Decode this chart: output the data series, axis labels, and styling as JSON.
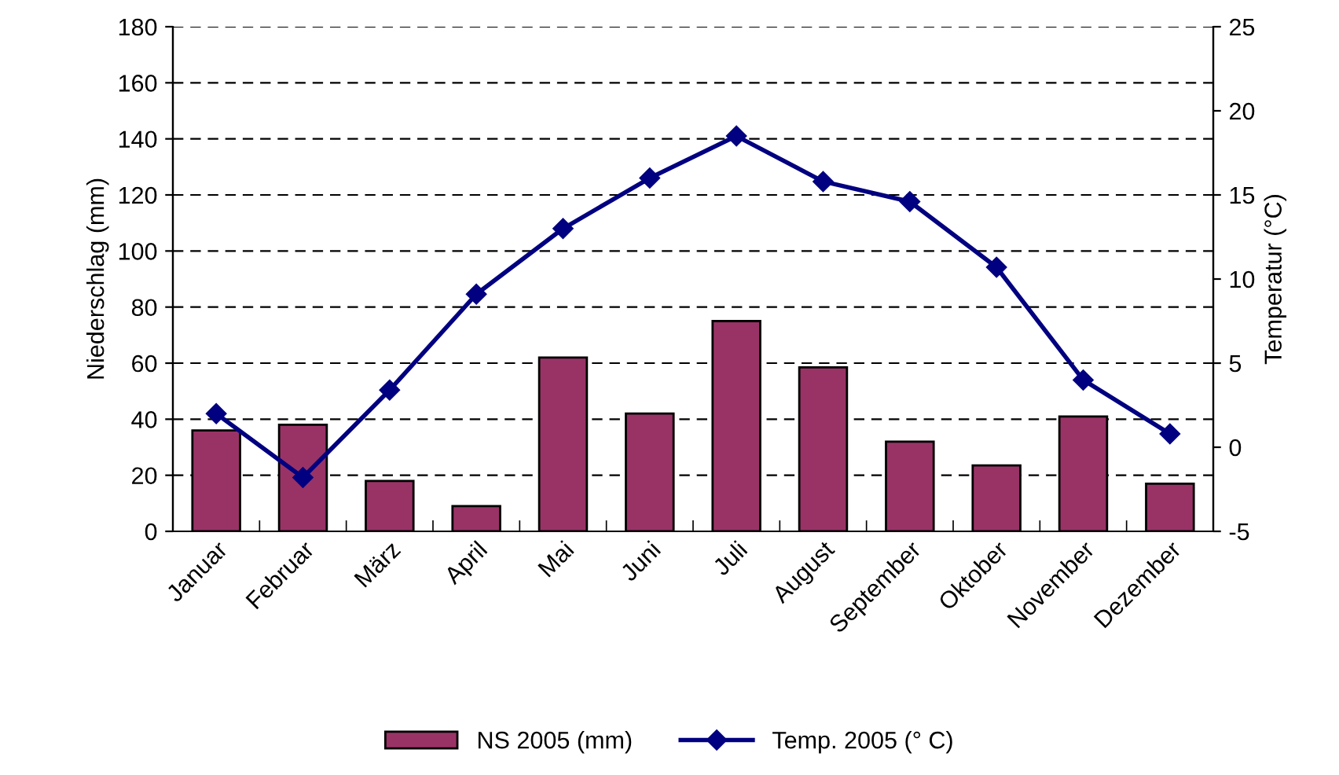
{
  "chart_data": {
    "type": "bar",
    "ylabel": "Niederschlag (mm)",
    "y2label": "Temperatur (°C)",
    "categories": [
      "Januar",
      "Februar",
      "März",
      "April",
      "Mai",
      "Juni",
      "Juli",
      "August",
      "September",
      "Oktober",
      "November",
      "Dezember"
    ],
    "series": [
      {
        "name": "NS 2005 (mm)",
        "color": "#993366",
        "values": [
          36,
          38,
          18,
          9,
          62,
          42,
          75,
          58.5,
          32,
          23.5,
          41,
          17
        ]
      },
      {
        "name": "Temp. 2005 (° C)",
        "type": "line",
        "axis": "y2",
        "color": "#000080",
        "marker": "diamond",
        "values": [
          2.0,
          -1.8,
          3.4,
          9.1,
          13.0,
          16.0,
          18.5,
          15.8,
          14.6,
          10.7,
          4.0,
          0.8
        ]
      }
    ],
    "ylim": [
      0,
      180
    ],
    "yticks": [
      0,
      20,
      40,
      60,
      80,
      100,
      120,
      140,
      160,
      180
    ],
    "y2lim": [
      -5,
      25
    ],
    "y2ticks": [
      -5,
      0,
      5,
      10,
      15,
      20,
      25
    ],
    "grid": "y",
    "legend": "bottom"
  }
}
